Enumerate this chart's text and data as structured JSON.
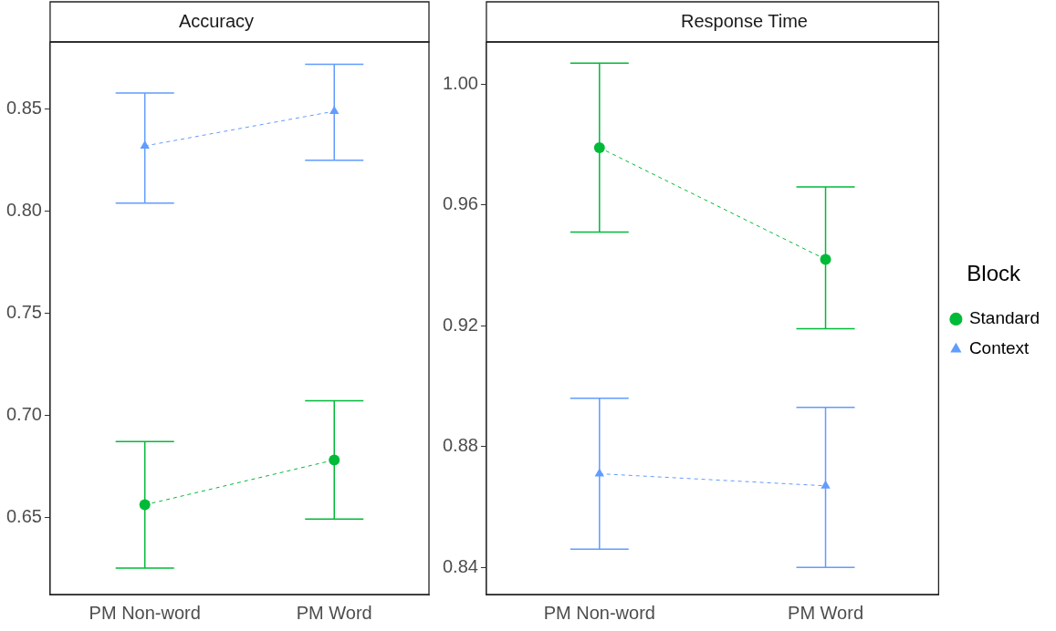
{
  "chart_data": [
    {
      "type": "line",
      "title": "Accuracy",
      "categories": [
        "PM Non-word",
        "PM Word"
      ],
      "series": [
        {
          "color": "#00ba38",
          "values": [
            0.656,
            0.678
          ],
          "errors": [
            [
              0.625,
              0.687
            ],
            [
              0.649,
              0.707
            ]
          ],
          "marker": "circle",
          "line_style": "dashed"
        },
        {
          "color": "#619cff",
          "values": [
            0.832,
            0.849
          ],
          "errors": [
            [
              0.804,
              0.858
            ],
            [
              0.825,
              0.872
            ]
          ],
          "marker": "triangle",
          "line_style": "dashed"
        }
      ],
      "ylim": [
        0.612,
        0.883
      ],
      "yticks": [
        0.65,
        {
          "value": 0.7,
          "label": "0.70"
        },
        0.75,
        {
          "value": 0.8,
          "label": "0.80"
        },
        0.85
      ],
      "grid": false,
      "legend": false
    },
    {
      "type": "line",
      "title": "Response Time",
      "categories": [
        "PM Non-word",
        "PM Word"
      ],
      "legend_title": "Block",
      "series": [
        {
          "name": "Standard",
          "color": "#00ba38",
          "values": [
            0.979,
            0.942
          ],
          "errors": [
            [
              0.951,
              1.007
            ],
            [
              0.919,
              0.966
            ]
          ],
          "marker": "circle",
          "line_style": "dashed"
        },
        {
          "name": "Context",
          "color": "#619cff",
          "values": [
            0.871,
            0.867
          ],
          "errors": [
            [
              0.846,
              0.896
            ],
            [
              0.84,
              0.893
            ]
          ],
          "marker": "triangle",
          "line_style": "dashed"
        }
      ],
      "ylim": [
        0.831,
        1.014
      ],
      "yticks": [
        0.84,
        0.88,
        0.92,
        0.96,
        {
          "value": 1.0,
          "label": "1.00"
        }
      ],
      "grid": false,
      "legend": "right"
    }
  ]
}
